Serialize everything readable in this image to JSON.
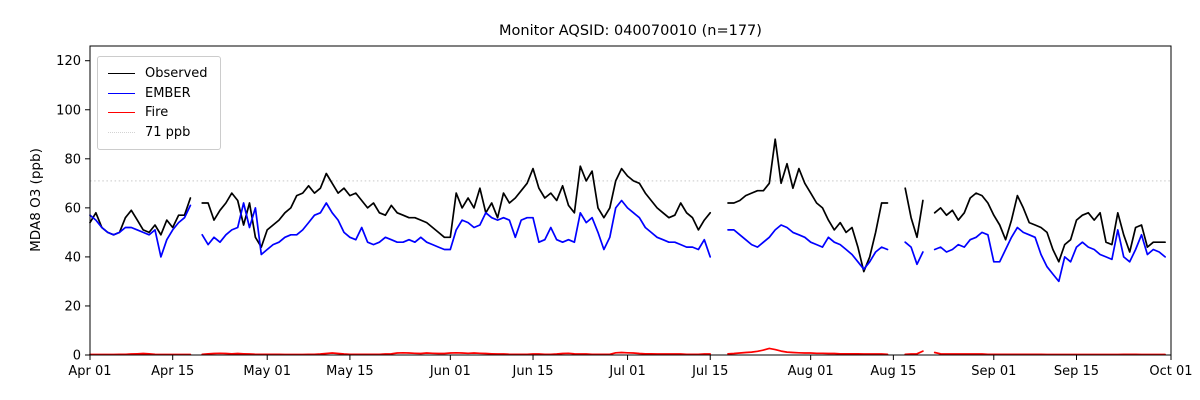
{
  "title": "Monitor AQSID: 040070010 (n=177)",
  "axes": {
    "ylabel": "MDA8 O3 (ppb)",
    "y_ticks": [
      0,
      20,
      40,
      60,
      80,
      100,
      120
    ],
    "ylim": [
      0,
      126
    ],
    "x_tick_labels": [
      "Apr 01",
      "Apr 15",
      "May 01",
      "May 15",
      "Jun 01",
      "Jun 15",
      "Jul 01",
      "Jul 15",
      "Aug 01",
      "Aug 15",
      "Sep 01",
      "Sep 15",
      "Oct 01"
    ],
    "x_tick_days": [
      0,
      14,
      30,
      44,
      61,
      75,
      91,
      105,
      122,
      136,
      153,
      167,
      183
    ],
    "x_total_days": 183,
    "grid": false,
    "spine_color": "#000000"
  },
  "legend": {
    "position": "upper-left",
    "entries": [
      {
        "label": "Observed",
        "color": "#000000",
        "style": "solid"
      },
      {
        "label": "EMBER",
        "color": "#0000ff",
        "style": "solid"
      },
      {
        "label": "Fire",
        "color": "#ff0000",
        "style": "solid"
      },
      {
        "label": "71 ppb",
        "color": "#d3d3d3",
        "style": "dotted"
      }
    ]
  },
  "chart_data": {
    "type": "line",
    "title": "Monitor AQSID: 040070010 (n=177)",
    "xlabel": "",
    "ylabel": "MDA8 O3 (ppb)",
    "ylim": [
      0,
      126
    ],
    "x_start": "Apr 01",
    "x_end": "Oct 01",
    "x_unit": "day",
    "cadence": "daily",
    "days_per_month": {
      "Apr": 30,
      "May": 31,
      "Jun": 30,
      "Jul": 31,
      "Aug": 31,
      "Sep": 30
    },
    "n_points": 177,
    "legend_position": "upper-left",
    "series": [
      {
        "name": "Observed",
        "color": "#000000",
        "linestyle": "solid",
        "values": [
          54,
          58,
          52,
          50,
          49,
          50,
          56,
          59,
          55,
          51,
          50,
          53,
          49,
          55,
          52,
          57,
          57,
          64,
          null,
          62,
          62,
          55,
          59,
          62,
          66,
          63,
          53,
          62,
          48,
          44,
          51,
          53,
          55,
          58,
          60,
          65,
          66,
          69,
          66,
          68,
          74,
          70,
          66,
          68,
          65,
          66,
          63,
          60,
          62,
          58,
          57,
          61,
          58,
          57,
          56,
          56,
          55,
          54,
          52,
          50,
          48,
          48,
          66,
          60,
          64,
          60,
          68,
          58,
          62,
          56,
          66,
          62,
          64,
          67,
          70,
          76,
          68,
          64,
          66,
          63,
          69,
          61,
          58,
          77,
          71,
          75,
          60,
          56,
          60,
          71,
          76,
          73,
          71,
          70,
          66,
          63,
          60,
          58,
          56,
          57,
          62,
          58,
          56,
          51,
          55,
          58,
          null,
          null,
          62,
          62,
          63,
          65,
          66,
          67,
          67,
          70,
          88,
          70,
          78,
          68,
          76,
          70,
          66,
          62,
          60,
          55,
          51,
          54,
          50,
          52,
          44,
          34,
          40,
          50,
          62,
          62,
          null,
          null,
          68,
          56,
          48,
          63,
          null,
          58,
          60,
          57,
          59,
          55,
          58,
          64,
          66,
          65,
          62,
          57,
          53,
          47,
          55,
          65,
          60,
          54,
          53,
          52,
          50,
          43,
          38,
          45,
          47,
          55,
          57,
          58,
          55,
          58,
          46,
          45,
          58,
          49,
          42,
          52,
          53,
          44,
          46,
          46,
          46
        ]
      },
      {
        "name": "EMBER",
        "color": "#0000ff",
        "linestyle": "solid",
        "values": [
          57,
          55,
          52,
          50,
          49,
          50,
          52,
          52,
          51,
          50,
          49,
          51,
          40,
          47,
          51,
          54,
          56,
          61,
          null,
          49,
          45,
          48,
          46,
          49,
          51,
          52,
          62,
          52,
          60,
          41,
          43,
          45,
          46,
          48,
          49,
          49,
          51,
          54,
          57,
          58,
          62,
          58,
          55,
          50,
          48,
          47,
          52,
          46,
          45,
          46,
          48,
          47,
          46,
          46,
          47,
          46,
          48,
          46,
          45,
          44,
          43,
          43,
          51,
          55,
          54,
          52,
          53,
          58,
          56,
          55,
          56,
          55,
          48,
          55,
          56,
          56,
          46,
          47,
          52,
          47,
          46,
          47,
          46,
          58,
          54,
          56,
          50,
          43,
          48,
          60,
          63,
          60,
          58,
          56,
          52,
          50,
          48,
          47,
          46,
          46,
          45,
          44,
          44,
          43,
          47,
          40,
          null,
          null,
          51,
          51,
          49,
          47,
          45,
          44,
          46,
          48,
          51,
          53,
          52,
          50,
          49,
          48,
          46,
          45,
          44,
          48,
          46,
          45,
          43,
          41,
          38,
          35,
          38,
          42,
          44,
          43,
          null,
          null,
          46,
          44,
          37,
          42,
          null,
          43,
          44,
          42,
          43,
          45,
          44,
          47,
          48,
          50,
          49,
          38,
          38,
          43,
          48,
          52,
          50,
          49,
          48,
          41,
          36,
          33,
          30,
          40,
          38,
          44,
          46,
          44,
          43,
          41,
          40,
          39,
          51,
          40,
          38,
          43,
          49,
          41,
          43,
          42,
          40
        ]
      },
      {
        "name": "Fire",
        "color": "#ff0000",
        "linestyle": "solid",
        "values": [
          0.2,
          0.2,
          0.2,
          0.2,
          0.2,
          0.3,
          0.3,
          0.4,
          0.5,
          0.6,
          0.5,
          0.3,
          0.2,
          0.2,
          0.2,
          0.2,
          0.2,
          0.2,
          null,
          0.3,
          0.5,
          0.6,
          0.7,
          0.6,
          0.5,
          0.6,
          0.5,
          0.4,
          0.3,
          0.3,
          0.3,
          0.3,
          0.3,
          0.2,
          0.2,
          0.2,
          0.2,
          0.3,
          0.3,
          0.4,
          0.6,
          0.8,
          0.6,
          0.4,
          0.3,
          0.3,
          0.3,
          0.3,
          0.3,
          0.3,
          0.4,
          0.5,
          0.8,
          0.9,
          0.8,
          0.7,
          0.6,
          0.8,
          0.7,
          0.6,
          0.6,
          0.8,
          0.9,
          0.8,
          0.7,
          0.8,
          0.7,
          0.6,
          0.5,
          0.4,
          0.4,
          0.3,
          0.3,
          0.3,
          0.3,
          0.4,
          0.4,
          0.3,
          0.3,
          0.4,
          0.6,
          0.7,
          0.5,
          0.4,
          0.4,
          0.3,
          0.3,
          0.3,
          0.3,
          0.9,
          1.0,
          0.9,
          0.8,
          0.6,
          0.5,
          0.5,
          0.4,
          0.4,
          0.4,
          0.4,
          0.4,
          0.3,
          0.3,
          0.3,
          0.4,
          0.4,
          null,
          null,
          0.5,
          0.6,
          0.8,
          1.0,
          1.2,
          1.5,
          2.0,
          2.7,
          2.2,
          1.6,
          1.2,
          1.0,
          0.9,
          0.8,
          0.8,
          0.7,
          0.7,
          0.6,
          0.6,
          0.5,
          0.5,
          0.5,
          0.5,
          0.4,
          0.4,
          0.4,
          0.4,
          0.3,
          null,
          null,
          0.3,
          0.4,
          0.5,
          1.6,
          null,
          1.0,
          0.5,
          0.4,
          0.4,
          0.4,
          0.4,
          0.4,
          0.4,
          0.4,
          0.3,
          0.3,
          0.3,
          0.3,
          0.3,
          0.3,
          0.3,
          0.3,
          0.3,
          0.3,
          0.2,
          0.2,
          0.2,
          0.2,
          0.2,
          0.2,
          0.2,
          0.2,
          0.2,
          0.2,
          0.2,
          0.2,
          0.2,
          0.3,
          0.3,
          0.3,
          0.2,
          0.2,
          0.2,
          0.2,
          0.2
        ]
      },
      {
        "name": "71 ppb",
        "type": "threshold",
        "value": 71,
        "color": "#d3d3d3",
        "linestyle": "dotted"
      }
    ]
  }
}
